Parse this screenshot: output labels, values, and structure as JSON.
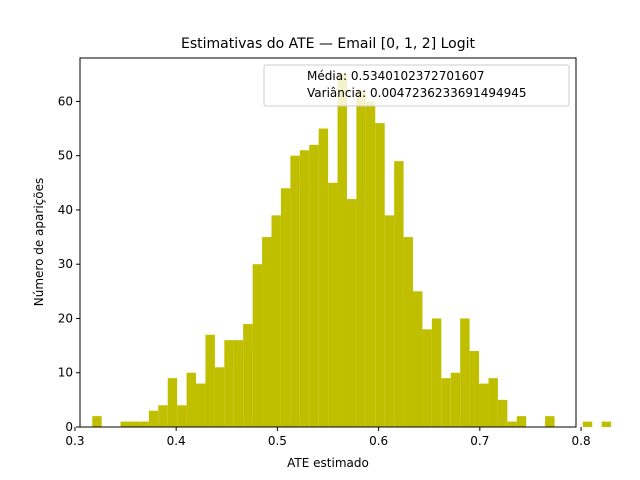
{
  "chart_data": {
    "type": "bar",
    "title": "Estimativas do ATE — Email [0, 1, 2] Logit",
    "xlabel": "ATE estimado",
    "ylabel": "Número de aparições",
    "xlim": [
      0.305,
      0.795
    ],
    "ylim": [
      0,
      68
    ],
    "xticks": [
      0.3,
      0.4,
      0.5,
      0.6,
      0.7,
      0.8
    ],
    "xtick_labels": [
      "0.3",
      "0.4",
      "0.5",
      "0.6",
      "0.7",
      "0.8"
    ],
    "yticks": [
      0,
      10,
      20,
      30,
      40,
      50,
      60
    ],
    "ytick_labels": [
      "0",
      "10",
      "20",
      "30",
      "40",
      "50",
      "60"
    ],
    "grid": false,
    "bar_color": "#bfbf00",
    "bin_start": 0.3171,
    "bin_width": 0.00932,
    "values": [
      2,
      0,
      0,
      1,
      1,
      1,
      3,
      4,
      9,
      4,
      10,
      8,
      17,
      11,
      16,
      16,
      19,
      30,
      35,
      39,
      44,
      50,
      51,
      52,
      55,
      45,
      65,
      42,
      62,
      60,
      56,
      39,
      49,
      35,
      25,
      18,
      20,
      9,
      10,
      20,
      14,
      8,
      9,
      5,
      1,
      2,
      0,
      0,
      2,
      0,
      0,
      0,
      1,
      0,
      1
    ],
    "legend": {
      "placement": "top-right",
      "lines": [
        "Média: 0.5340102372701607",
        "Variância: 0.004723623369149494​5"
      ]
    }
  }
}
